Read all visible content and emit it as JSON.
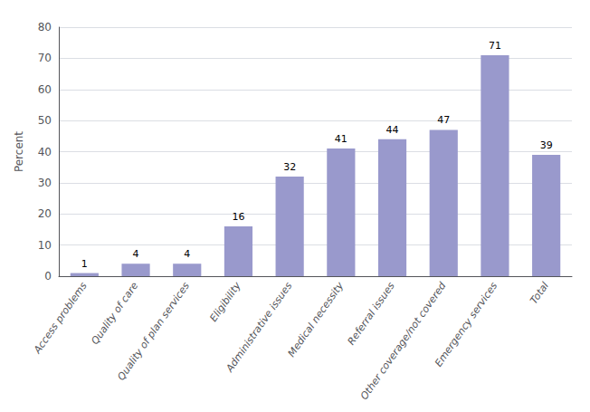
{
  "chart_data": {
    "type": "bar",
    "ylabel": "Percent",
    "categories": [
      "Access problems",
      "Quality of care",
      "Quality of plan services",
      "Eligibility",
      "Administrative issues",
      "Medical necessity",
      "Referral issues",
      "Other coverage/not covered",
      "Emergency services",
      "Total"
    ],
    "values": [
      1,
      4,
      4,
      16,
      32,
      41,
      44,
      47,
      71,
      39
    ],
    "color": "#9999cc",
    "ylim": [
      0,
      80
    ],
    "yticks": [
      0,
      10,
      20,
      30,
      40,
      50,
      60,
      70,
      80
    ],
    "grid": true,
    "data_labels": true
  }
}
